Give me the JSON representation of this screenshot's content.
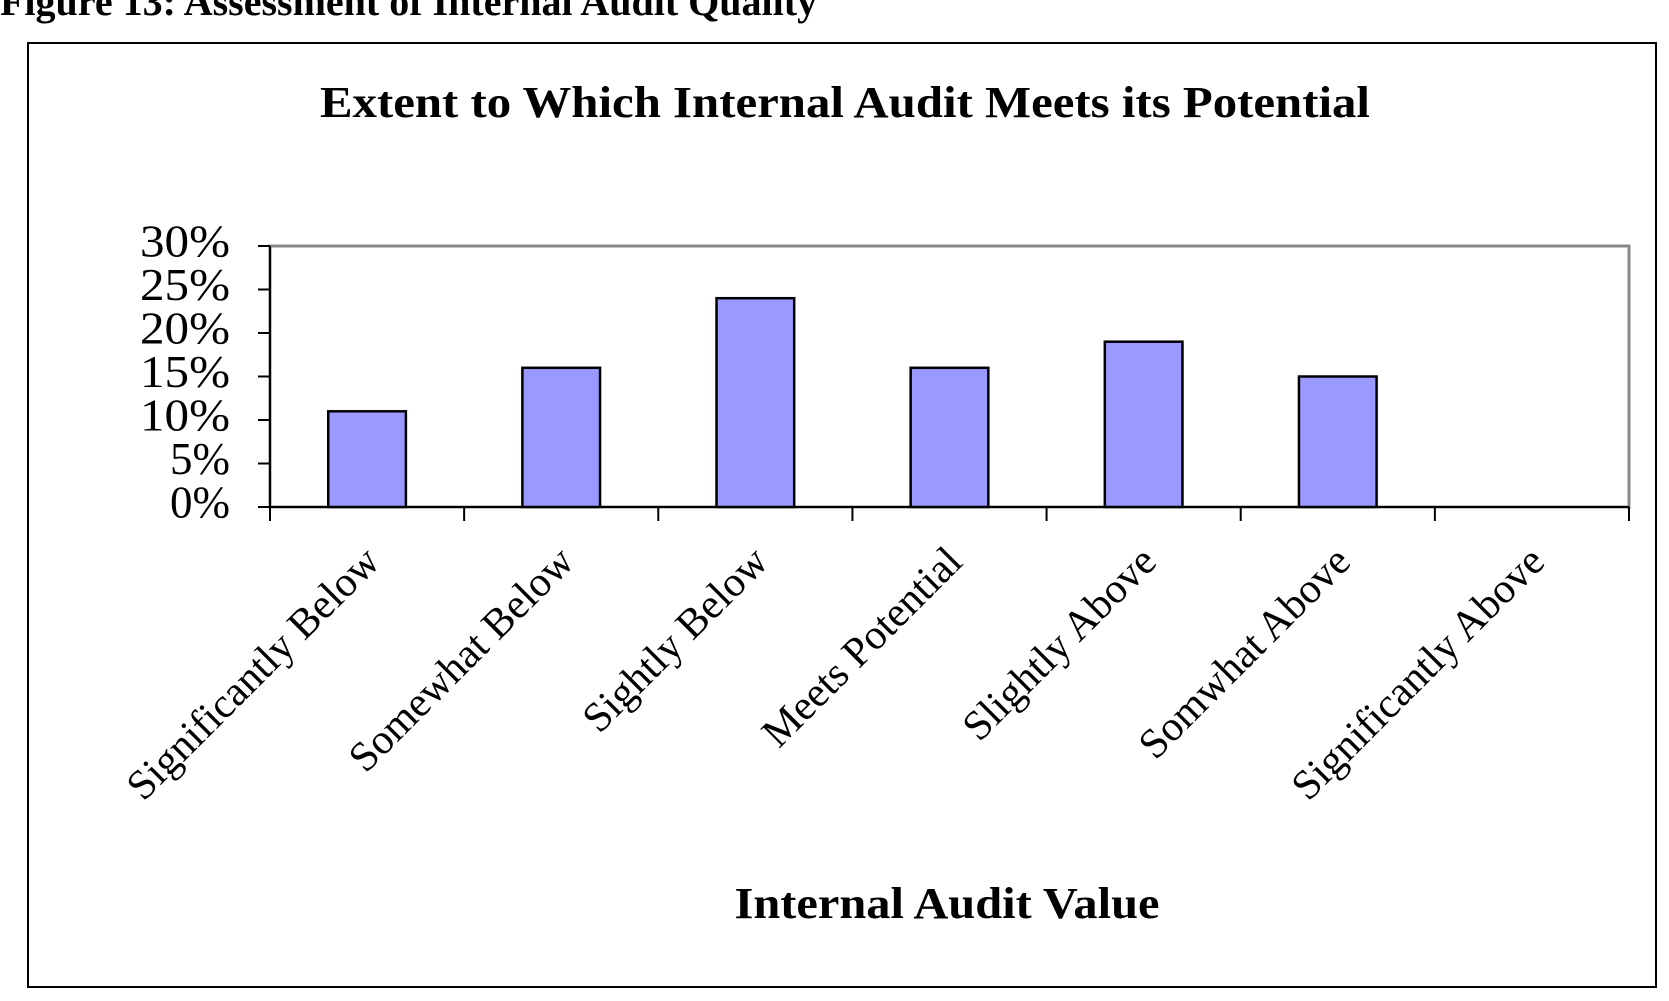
{
  "header": {
    "title": "Figure 13: Assessment of Internal Audit Quality"
  },
  "chart_data": {
    "type": "bar",
    "title": "Extent to Which Internal Audit Meets its Potential",
    "x_label": "Internal Audit Value",
    "categories": [
      "Significantly Below",
      "Somewhat Below",
      "Sightly Below",
      "Meets Potential",
      "Slightly Above",
      "Somwhat Above",
      "Significantly Above"
    ],
    "values": [
      11,
      16,
      24,
      16,
      19,
      15,
      null
    ],
    "color": "#9999ff",
    "ylim": [
      0,
      30
    ],
    "yticks": [
      {
        "value": 0,
        "label": "0%"
      },
      {
        "value": 5,
        "label": "5%"
      },
      {
        "value": 10,
        "label": "10%"
      },
      {
        "value": 15,
        "label": "15%"
      },
      {
        "value": 20,
        "label": "20%"
      },
      {
        "value": 25,
        "label": "25%"
      },
      {
        "value": 30,
        "label": "30%"
      }
    ],
    "grid": false
  }
}
